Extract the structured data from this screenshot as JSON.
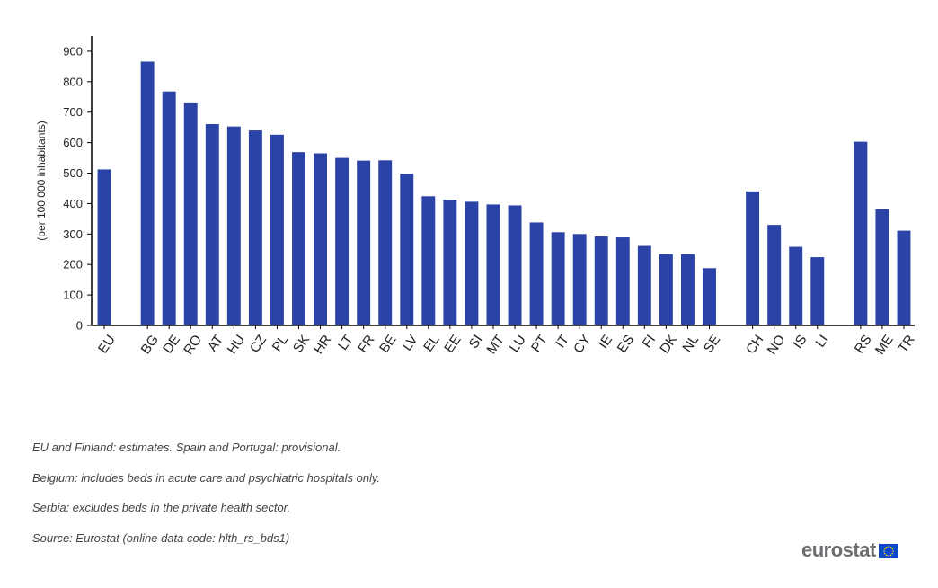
{
  "chart_data": {
    "type": "bar",
    "categories": [
      "EU",
      "",
      "BG",
      "DE",
      "RO",
      "AT",
      "HU",
      "CZ",
      "PL",
      "SK",
      "HR",
      "LT",
      "FR",
      "BE",
      "LV",
      "EL",
      "EE",
      "SI",
      "MT",
      "LU",
      "PT",
      "IT",
      "CY",
      "IE",
      "ES",
      "FI",
      "DK",
      "NL",
      "SE",
      "",
      "CH",
      "NO",
      "IS",
      "LI",
      "",
      "RS",
      "ME",
      "TR"
    ],
    "values": [
      512,
      null,
      866,
      768,
      729,
      661,
      653,
      640,
      626,
      569,
      565,
      550,
      541,
      542,
      498,
      424,
      412,
      406,
      397,
      394,
      338,
      306,
      300,
      292,
      289,
      261,
      234,
      234,
      188,
      null,
      440,
      330,
      258,
      224,
      null,
      603,
      382,
      311
    ],
    "ylabel": "(per 100 000 inhabitants)",
    "ylim": [
      0,
      950
    ],
    "yticks": [
      0,
      100,
      200,
      300,
      400,
      500,
      600,
      700,
      800,
      900
    ],
    "bar_color": "#2b43a6",
    "grid": false,
    "legend": "none"
  },
  "notes": [
    "EU and Finland: estimates. Spain and Portugal: provisional.",
    "Belgium: includes beds in acute care and psychiatric hospitals only.",
    "Serbia: excludes beds in the private health sector.",
    "Source: Eurostat (online data code: hlth_rs_bds1)"
  ],
  "brand": {
    "text": "eurostat",
    "flag_color": "#0e47cb",
    "star_color": "#ffd617"
  }
}
